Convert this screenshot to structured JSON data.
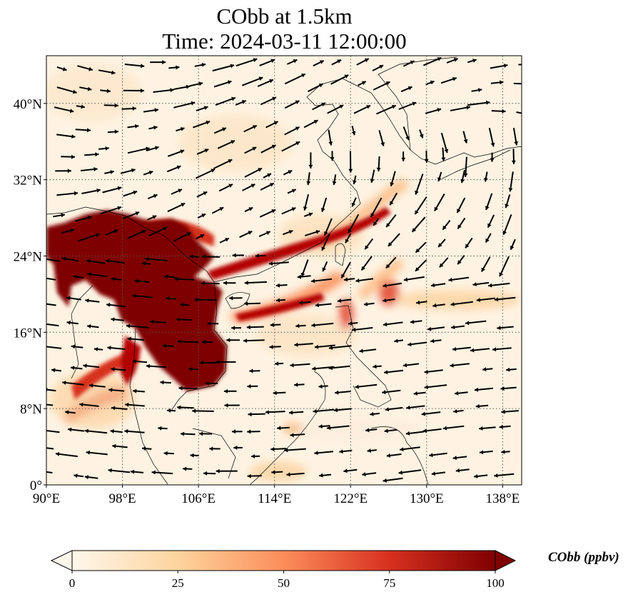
{
  "figure": {
    "title_line1": "CObb at 1.5km",
    "title_line2": "Time: 2024-03-11 12:00:00"
  },
  "map": {
    "lon_range": [
      90,
      140
    ],
    "lat_range": [
      0,
      45
    ],
    "gridlines": true,
    "lon_ticks": [
      {
        "value": 90,
        "label": "90°E"
      },
      {
        "value": 98,
        "label": "98°E"
      },
      {
        "value": 106,
        "label": "106°E"
      },
      {
        "value": 114,
        "label": "114°E"
      },
      {
        "value": 122,
        "label": "122°E"
      },
      {
        "value": 130,
        "label": "130°E"
      },
      {
        "value": 138,
        "label": "138°E"
      }
    ],
    "lat_ticks": [
      {
        "value": 0,
        "label": "0°"
      },
      {
        "value": 8,
        "label": "8°N"
      },
      {
        "value": 16,
        "label": "16°N"
      },
      {
        "value": 24,
        "label": "24°N"
      },
      {
        "value": 32,
        "label": "32°N"
      },
      {
        "value": 40,
        "label": "40°N"
      }
    ]
  },
  "colorbar": {
    "label": "CObb (ppbv)",
    "range": [
      0,
      100
    ],
    "extend": "both",
    "colormap": "OrRd",
    "colors": [
      "#fff7ec",
      "#fdd49e",
      "#fc8d59",
      "#d7301f",
      "#7f0000"
    ],
    "ticks": [
      {
        "value": 0,
        "label": "0"
      },
      {
        "value": 25,
        "label": "25"
      },
      {
        "value": 50,
        "label": "50"
      },
      {
        "value": 75,
        "label": "75"
      },
      {
        "value": 100,
        "label": "100"
      }
    ]
  }
}
